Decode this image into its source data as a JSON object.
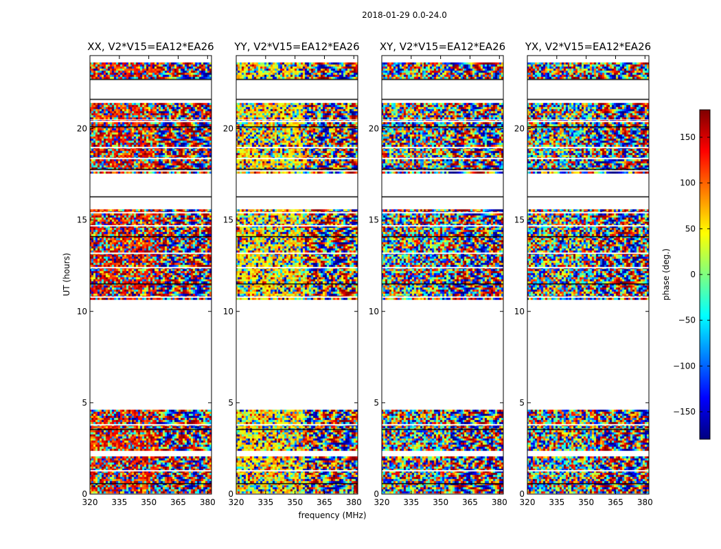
{
  "figure": {
    "suptitle": "2018-01-29 0.0-24.0"
  },
  "chart_data": {
    "type": "heatmap",
    "xlabel": "frequency (MHz)",
    "ylabel": "UT (hours)",
    "xlim": [
      320,
      382
    ],
    "ylim": [
      0,
      24
    ],
    "xticks": [
      "320",
      "335",
      "350",
      "365",
      "380"
    ],
    "xtick_values": [
      320,
      335,
      350,
      365,
      380
    ],
    "yticks": [
      "0",
      "5",
      "10",
      "15",
      "20"
    ],
    "ytick_values": [
      0,
      5,
      10,
      15,
      20
    ],
    "colorbar": {
      "label": "phase (deg.)",
      "range": [
        -180,
        180
      ],
      "ticks": [
        "150",
        "100",
        "50",
        "0",
        "−50",
        "−100",
        "−150"
      ],
      "tick_values": [
        150,
        100,
        50,
        0,
        -50,
        -100,
        -150
      ],
      "colormap": "jet",
      "colors": [
        "#00007f",
        "#0000ff",
        "#007fff",
        "#00ffff",
        "#7fff7f",
        "#ffff00",
        "#ff7f00",
        "#ff0000",
        "#7f0000"
      ]
    },
    "panels": [
      {
        "title": "XX, V2*V15=EA12*EA26",
        "bias": "red"
      },
      {
        "title": "YY, V2*V15=EA12*EA26",
        "bias": "yellow"
      },
      {
        "title": "XY, V2*V15=EA12*EA26",
        "bias": "none"
      },
      {
        "title": "YX, V2*V15=EA12*EA26",
        "bias": "none"
      }
    ],
    "data_blocks_ut": [
      [
        0.05,
        2.05
      ],
      [
        2.35,
        4.6
      ],
      [
        10.65,
        15.55
      ],
      [
        17.6,
        20.45
      ],
      [
        20.5,
        21.4
      ],
      [
        22.8,
        23.6
      ]
    ],
    "flag_lines_ut": [
      0.6,
      1.3,
      2.2,
      3.55,
      3.8,
      10.8,
      11.5,
      12.4,
      13.2,
      14.1,
      14.7,
      15.4,
      16.3,
      17.0,
      17.7,
      17.8,
      18.4,
      19.0,
      20.1,
      20.4,
      21.5,
      21.6,
      22.1,
      22.6,
      22.7
    ]
  }
}
